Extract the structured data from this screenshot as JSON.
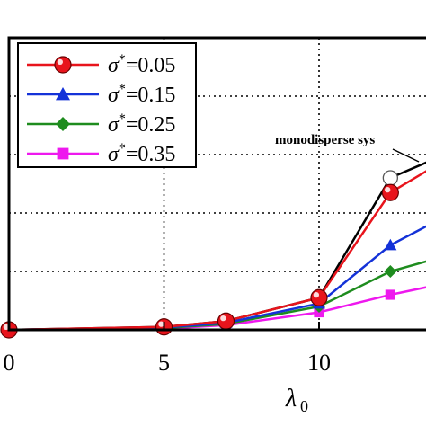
{
  "chart_data": {
    "type": "line",
    "title": "",
    "xlabel": "λ",
    "xlabel_subscript": "0",
    "ylabel": "",
    "xlim": [
      0,
      15
    ],
    "ylim": [
      0,
      5
    ],
    "grid": true,
    "legend_position": "top-left",
    "x_ticks": [
      "0",
      "5",
      "10"
    ],
    "x_tick_values": [
      0,
      5,
      10
    ],
    "y_gridlines": [
      1,
      2,
      3,
      4
    ],
    "x_gridlines": [
      5,
      10
    ],
    "series": [
      {
        "name": "monodisperse system",
        "legend": false,
        "marker": "open-circle",
        "color": "#000000",
        "x": [
          0,
          5,
          7,
          10,
          12.3,
          14.5
        ],
        "y": [
          0.0,
          0.05,
          0.15,
          0.55,
          2.6,
          3.1
        ]
      },
      {
        "name": "σ*=0.05",
        "legend": true,
        "marker": "circle",
        "color": "#e8141c",
        "x": [
          0,
          5,
          7,
          10,
          12.3,
          15
        ],
        "y": [
          0.0,
          0.05,
          0.15,
          0.55,
          2.35,
          3.2
        ]
      },
      {
        "name": "σ*=0.15",
        "legend": true,
        "marker": "triangle",
        "color": "#1432d8",
        "x": [
          0,
          5,
          7,
          10,
          12.3,
          15
        ],
        "y": [
          0.0,
          0.04,
          0.12,
          0.45,
          1.45,
          2.2
        ]
      },
      {
        "name": "σ*=0.25",
        "legend": true,
        "marker": "diamond",
        "color": "#1e8c1e",
        "x": [
          0,
          5,
          7,
          10,
          12.3,
          15
        ],
        "y": [
          0.0,
          0.03,
          0.1,
          0.4,
          1.0,
          1.4
        ]
      },
      {
        "name": "σ*=0.35",
        "legend": true,
        "marker": "square",
        "color": "#ee18ee",
        "x": [
          0,
          5,
          7,
          10,
          12.3,
          15
        ],
        "y": [
          0.0,
          0.02,
          0.08,
          0.3,
          0.6,
          0.9
        ]
      }
    ],
    "legend_entries": [
      {
        "sigma": "σ",
        "star": "*",
        "value": "=0.05"
      },
      {
        "sigma": "σ",
        "star": "*",
        "value": "=0.15"
      },
      {
        "sigma": "σ",
        "star": "*",
        "value": "=0.25"
      },
      {
        "sigma": "σ",
        "star": "*",
        "value": "=0.35"
      }
    ],
    "annotation": "monodisperse sys"
  }
}
